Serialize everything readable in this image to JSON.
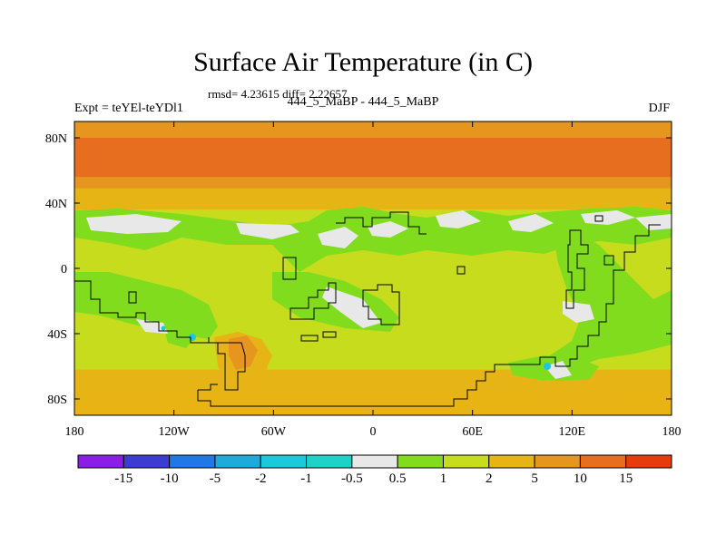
{
  "chart_data": {
    "type": "heatmap",
    "title": "Surface Air Temperature (in C)",
    "stats_text": "rmsd= 4.23615 diff= 2.22657",
    "subtitle": "444_5_MaBP - 444_5_MaBP",
    "left_label": "Expt = teYEl-teYDl1",
    "right_label": "DJF",
    "x_ticks": [
      "180",
      "120W",
      "60W",
      "0",
      "60E",
      "120E",
      "180"
    ],
    "y_ticks": [
      "80N",
      "40N",
      "0",
      "40S",
      "80S"
    ],
    "xlim": [
      -180,
      180
    ],
    "ylim": [
      -90,
      90
    ],
    "colorbar": {
      "colors": [
        "#8a1ee6",
        "#3c3cd2",
        "#1e78e6",
        "#1eaadc",
        "#1ec8dc",
        "#1ed2c8",
        "#e8e8e8",
        "#82dc1e",
        "#c8dc1e",
        "#e6b414",
        "#e6961e",
        "#e66e1e",
        "#e63c0a"
      ],
      "labels": [
        "-15",
        "-10",
        "-5",
        "-2",
        "-1",
        "-0.5",
        "0.5",
        "1",
        "2",
        "5",
        "10",
        "15"
      ]
    },
    "zonal_bands": [
      {
        "lat_top": 90,
        "lat_bottom": 86,
        "value": 6
      },
      {
        "lat_top": 86,
        "lat_bottom": 80,
        "value": 9
      },
      {
        "lat_top": 80,
        "lat_bottom": 75,
        "value": 11
      },
      {
        "lat_top": 75,
        "lat_bottom": 62,
        "value": 13
      },
      {
        "lat_top": 62,
        "lat_bottom": 56,
        "value": 11
      },
      {
        "lat_top": 56,
        "lat_bottom": 49,
        "value": 7
      },
      {
        "lat_top": 49,
        "lat_bottom": 43,
        "value": 4
      },
      {
        "lat_top": 43,
        "lat_bottom": 36,
        "value": 2.5
      },
      {
        "lat_top": 36,
        "lat_bottom": -36,
        "value": 1.5
      },
      {
        "lat_top": -36,
        "lat_bottom": -62,
        "value": 1.8
      },
      {
        "lat_top": -62,
        "lat_bottom": -90,
        "value": 2.5
      }
    ]
  }
}
